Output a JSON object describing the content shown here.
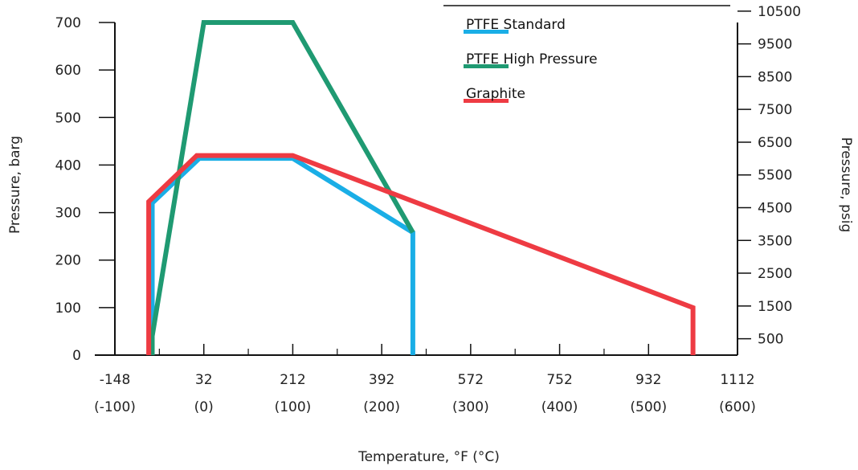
{
  "chart_data": {
    "type": "line",
    "xlabel": "Temperature, °F (°C)",
    "ylabel": "Pressure, barg",
    "ylabel_right": "Pressure, psig",
    "x_unit": "°C",
    "xlim": [
      -100,
      600
    ],
    "ylim": [
      0,
      700
    ],
    "x_ticks": [
      {
        "value": -100,
        "label_f": "-148",
        "label_c": "(-100)"
      },
      {
        "value": 0,
        "label_f": "32",
        "label_c": "(0)"
      },
      {
        "value": 100,
        "label_f": "212",
        "label_c": "(100)"
      },
      {
        "value": 200,
        "label_f": "392",
        "label_c": "(200)"
      },
      {
        "value": 300,
        "label_f": "572",
        "label_c": "(300)"
      },
      {
        "value": 400,
        "label_f": "752",
        "label_c": "(400)"
      },
      {
        "value": 500,
        "label_f": "932",
        "label_c": "(500)"
      },
      {
        "value": 600,
        "label_f": "1112",
        "label_c": "(600)"
      }
    ],
    "y_ticks": [
      0,
      100,
      200,
      300,
      400,
      500,
      600,
      700
    ],
    "y_right_ticks": [
      500,
      1500,
      2500,
      3500,
      4500,
      5500,
      6500,
      7500,
      8500,
      9500,
      10500
    ],
    "y_right_psig_per_barg": 14.5038,
    "legend_position": "top-center-right",
    "grid": false,
    "series": [
      {
        "name": "PTFE Standard",
        "color": "#1aaee6",
        "points": [
          [
            -58,
            0
          ],
          [
            -58,
            320
          ],
          [
            -5,
            414
          ],
          [
            100,
            414
          ],
          [
            235,
            258
          ],
          [
            235,
            0
          ]
        ]
      },
      {
        "name": "PTFE High Pressure",
        "color": "#1f9a72",
        "points": [
          [
            -58,
            0
          ],
          [
            -58,
            40
          ],
          [
            0,
            700
          ],
          [
            100,
            700
          ],
          [
            235,
            258
          ]
        ]
      },
      {
        "name": "Graphite",
        "color": "#ee3b43",
        "points": [
          [
            -62,
            0
          ],
          [
            -62,
            323
          ],
          [
            -8,
            420
          ],
          [
            100,
            420
          ],
          [
            550,
            100
          ],
          [
            550,
            0
          ]
        ]
      }
    ]
  }
}
